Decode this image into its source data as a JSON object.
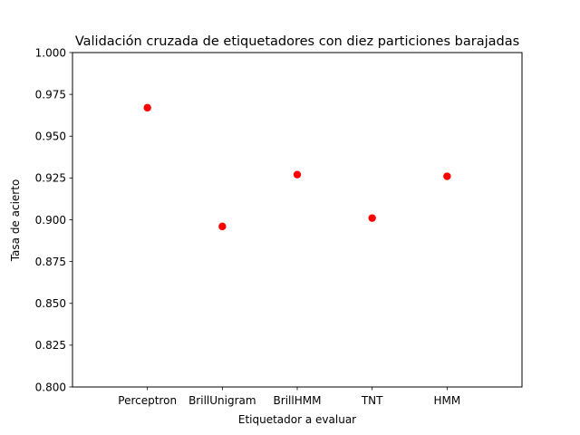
{
  "chart_data": {
    "type": "scatter",
    "title": "Validación cruzada de etiquetadores con diez particiones barajadas",
    "xlabel": "Etiquetador a evaluar",
    "ylabel": "Tasa de acierto",
    "categories": [
      "Perceptron",
      "BrillUnigram",
      "BrillHMM",
      "TNT",
      "HMM"
    ],
    "values": [
      0.967,
      0.896,
      0.927,
      0.901,
      0.926
    ],
    "ylim": [
      0.8,
      1.0
    ],
    "yticks": [
      "0.800",
      "0.825",
      "0.850",
      "0.875",
      "0.900",
      "0.925",
      "0.950",
      "0.975",
      "1.000"
    ],
    "marker_color": "#ff0000",
    "grid": false
  }
}
